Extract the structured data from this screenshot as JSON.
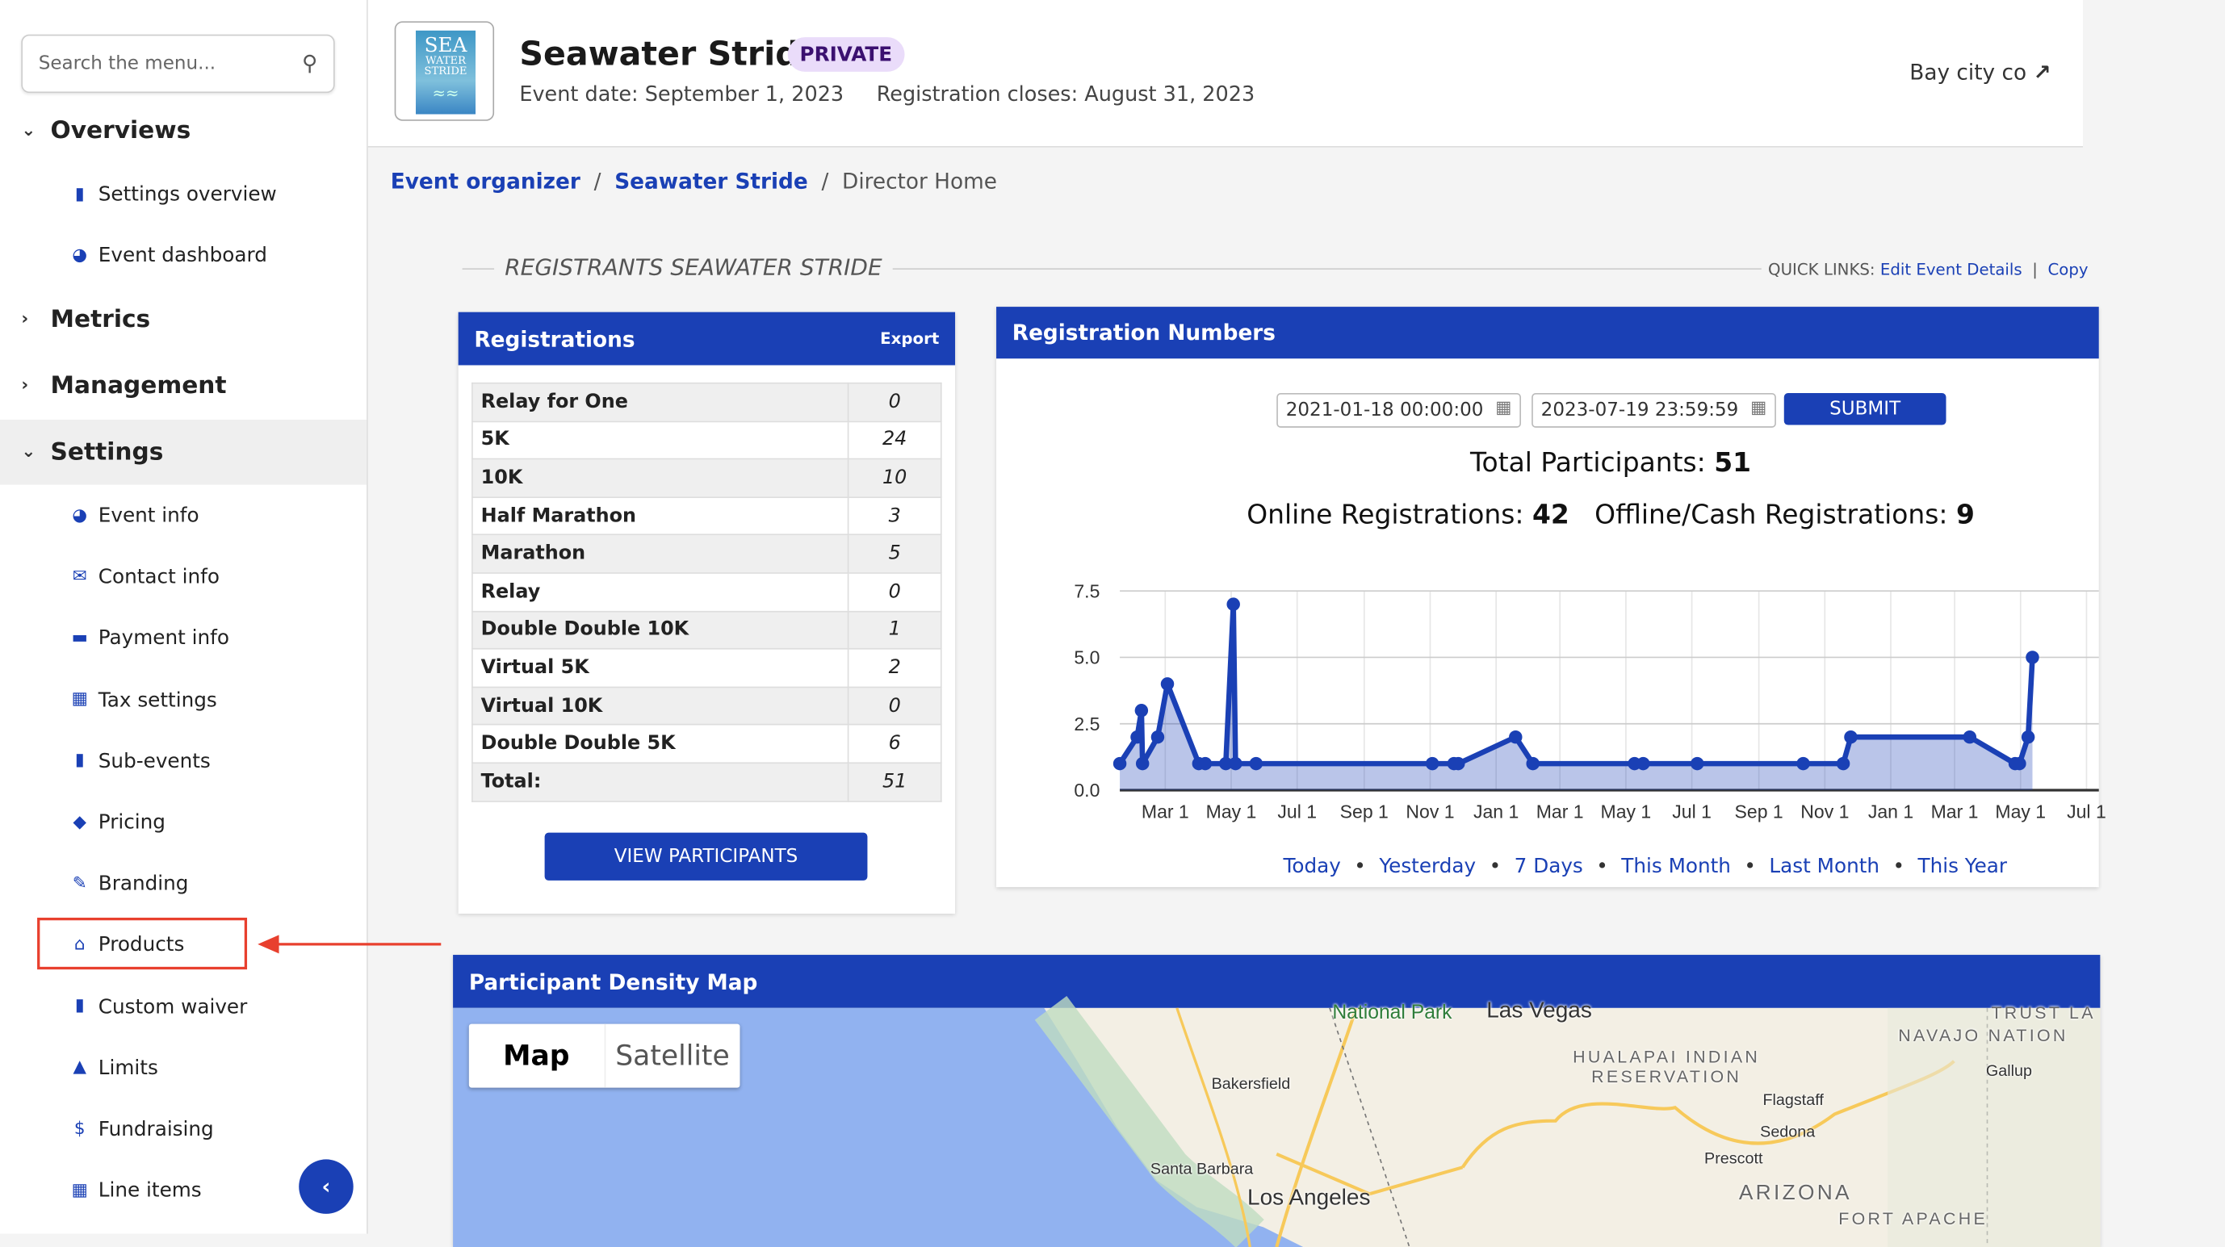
{
  "sidebar": {
    "search_placeholder": "Search the menu...",
    "sections": {
      "overviews": "Overviews",
      "metrics": "Metrics",
      "management": "Management",
      "settings": "Settings"
    },
    "overview_items": [
      {
        "label": "Settings overview",
        "icon": "clipboard-icon"
      },
      {
        "label": "Event dashboard",
        "icon": "gauge-icon"
      }
    ],
    "settings_items": [
      {
        "label": "Event info",
        "icon": "gauge-icon"
      },
      {
        "label": "Contact info",
        "icon": "envelope-icon"
      },
      {
        "label": "Payment info",
        "icon": "credit-card-icon"
      },
      {
        "label": "Tax settings",
        "icon": "calculator-icon"
      },
      {
        "label": "Sub-events",
        "icon": "clipboard-icon"
      },
      {
        "label": "Pricing",
        "icon": "tags-icon"
      },
      {
        "label": "Branding",
        "icon": "paint-brush-icon"
      },
      {
        "label": "Products",
        "icon": "basket-icon"
      },
      {
        "label": "Custom waiver",
        "icon": "file-icon"
      },
      {
        "label": "Limits",
        "icon": "warning-icon"
      },
      {
        "label": "Fundraising",
        "icon": "dollar-icon"
      },
      {
        "label": "Line items",
        "icon": "calculator-icon"
      }
    ],
    "highlight_color": "#e8402e"
  },
  "header": {
    "title": "Seawater Stride",
    "badge": "PRIVATE",
    "event_date": "Event date: September 1, 2023",
    "registration_closes": "Registration closes: August 31, 2023",
    "org": "Bay city co",
    "logo_text": [
      "SEA",
      "WATER",
      "STRIDE"
    ]
  },
  "breadcrumb": [
    "Event organizer",
    "Seawater Stride",
    "Director Home"
  ],
  "section_title": "REGISTRANTS SEAWATER STRIDE",
  "quick_links": {
    "label": "QUICK LINKS:",
    "links": [
      "Edit Event Details",
      "Copy"
    ]
  },
  "registrations": {
    "title": "Registrations",
    "export": "Export",
    "rows": [
      [
        "Relay for One",
        "0"
      ],
      [
        "5K",
        "24"
      ],
      [
        "10K",
        "10"
      ],
      [
        "Half Marathon",
        "3"
      ],
      [
        "Marathon",
        "5"
      ],
      [
        "Relay",
        "0"
      ],
      [
        "Double Double 10K",
        "1"
      ],
      [
        "Virtual 5K",
        "2"
      ],
      [
        "Virtual 10K",
        "0"
      ],
      [
        "Double Double 5K",
        "6"
      ],
      [
        "Total:",
        "51"
      ]
    ],
    "button": "VIEW PARTICIPANTS"
  },
  "numbers": {
    "title": "Registration Numbers",
    "start": "2021-01-18 00:00:00",
    "end": "2023-07-19 23:59:59",
    "submit": "SUBMIT",
    "total_label": "Total Participants:",
    "total": "51",
    "online_label": "Online Registrations:",
    "online": "42",
    "offline_label": "Offline/Cash Registrations:",
    "offline": "9",
    "ranges": [
      "Today",
      "Yesterday",
      "7 Days",
      "This Month",
      "Last Month",
      "This Year"
    ]
  },
  "chart_data": {
    "type": "area",
    "xlabel": "",
    "ylabel": "",
    "ylim": [
      0,
      7.5
    ],
    "xlim": [
      "2021-01-18",
      "2023-07-19"
    ],
    "grid": true,
    "yticks": [
      "0.0",
      "2.5",
      "5.0",
      "7.5"
    ],
    "xticks": [
      [
        "2021-03-01",
        "Mar 1"
      ],
      [
        "2021-05-01",
        "May 1"
      ],
      [
        "2021-07-01",
        "Jul 1"
      ],
      [
        "2021-09-01",
        "Sep 1"
      ],
      [
        "2021-11-01",
        "Nov 1"
      ],
      [
        "2022-01-01",
        "Jan 1"
      ],
      [
        "2022-03-01",
        "Mar 1"
      ],
      [
        "2022-05-01",
        "May 1"
      ],
      [
        "2022-07-01",
        "Jul 1"
      ],
      [
        "2022-09-01",
        "Sep 1"
      ],
      [
        "2022-11-01",
        "Nov 1"
      ],
      [
        "2023-01-01",
        "Jan 1"
      ],
      [
        "2023-03-01",
        "Mar 1"
      ],
      [
        "2023-05-01",
        "May 1"
      ],
      [
        "2023-07-01",
        "Jul 1"
      ]
    ],
    "color": "#1a40b5",
    "points": [
      [
        "2021-01-18",
        1
      ],
      [
        "2021-02-03",
        2
      ],
      [
        "2021-02-07",
        3
      ],
      [
        "2021-02-08",
        1
      ],
      [
        "2021-02-22",
        2
      ],
      [
        "2021-03-03",
        4
      ],
      [
        "2021-04-01",
        1
      ],
      [
        "2021-04-07",
        1
      ],
      [
        "2021-04-26",
        1
      ],
      [
        "2021-05-03",
        7
      ],
      [
        "2021-05-05",
        1
      ],
      [
        "2021-05-24",
        1
      ],
      [
        "2021-11-03",
        1
      ],
      [
        "2021-11-23",
        1
      ],
      [
        "2021-11-27",
        1
      ],
      [
        "2022-01-19",
        2
      ],
      [
        "2022-02-04",
        1
      ],
      [
        "2022-05-09",
        1
      ],
      [
        "2022-05-17",
        1
      ],
      [
        "2022-07-06",
        1
      ],
      [
        "2022-10-12",
        1
      ],
      [
        "2022-11-18",
        1
      ],
      [
        "2022-11-25",
        2
      ],
      [
        "2023-03-15",
        2
      ],
      [
        "2023-04-26",
        1
      ],
      [
        "2023-04-30",
        1
      ],
      [
        "2023-05-08",
        2
      ],
      [
        "2023-05-12",
        5
      ]
    ]
  },
  "map": {
    "title": "Participant Density Map",
    "tabs": [
      "Map",
      "Satellite"
    ],
    "labels": [
      "National Park",
      "Las Vegas",
      "NAVAJO NATION",
      "HUALAPAI INDIAN\nRESERVATION",
      "Gallup",
      "Bakersfield",
      "Flagstaff",
      "Sedona",
      "Prescott",
      "Santa Barbara",
      "Los Angeles",
      "ARIZONA",
      "FORT APACHE",
      "TRUST LA"
    ]
  }
}
